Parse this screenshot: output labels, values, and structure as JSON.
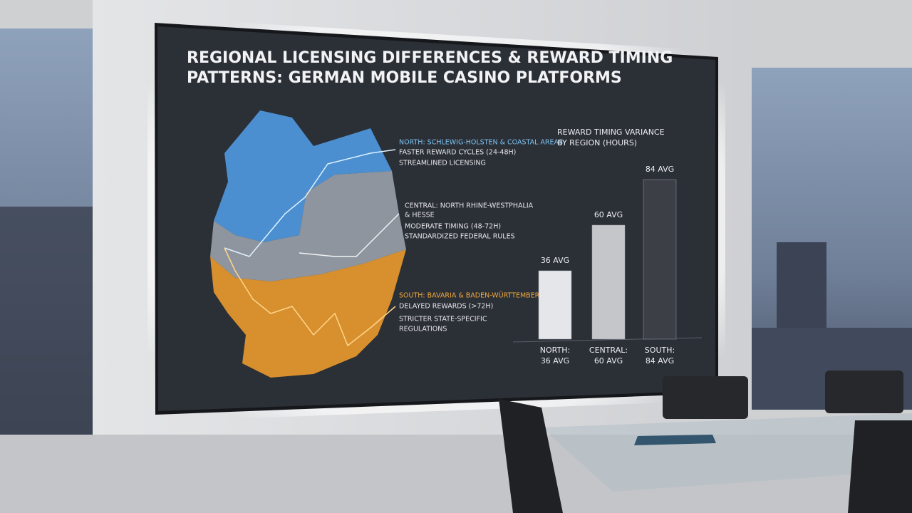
{
  "screen": {
    "title_lines": [
      "REGIONAL LICENSING DIFFERENCES & REWARD TIMING",
      "PATTERNS: GERMAN MOBILE CASINO PLATFORMS"
    ],
    "regions": [
      {
        "heading": "NORTH: SCHLEWIG-HOLSTEN & COASTAL AREAS",
        "lines": [
          "FASTER REWARD CYCLES (24-48H)",
          "STREAMLINED LICENSING"
        ]
      },
      {
        "heading": "CENTRAL: NORTH RHINE-WESTPHALIA",
        "lines": [
          "& HESSE",
          "MODERATE TIMING (48-72H)",
          "STANDARDIZED FEDERAL RULES"
        ]
      },
      {
        "heading": "SOUTH: BAVARIA & BADEN-WÜRTTEMBERG",
        "lines": [
          "DELAYED REWARDS (>72H)",
          "STRICTER STATE-SPECIFIC",
          "REGULATIONS"
        ]
      }
    ]
  },
  "chart_data": {
    "type": "bar",
    "title_lines": [
      "REWARD TIMING VARIANCE",
      "BY REGION (HOURS)"
    ],
    "categories": [
      "NORTH:",
      "CENTRAL:",
      "SOUTH:"
    ],
    "values": [
      36,
      60,
      84
    ],
    "value_labels": [
      "36 AVG",
      "60 AVG",
      "84 AVG"
    ],
    "colors": [
      "#e4e6ea",
      "#c4c6ca",
      "#3c3f46"
    ],
    "ylim": [
      0,
      90
    ]
  }
}
